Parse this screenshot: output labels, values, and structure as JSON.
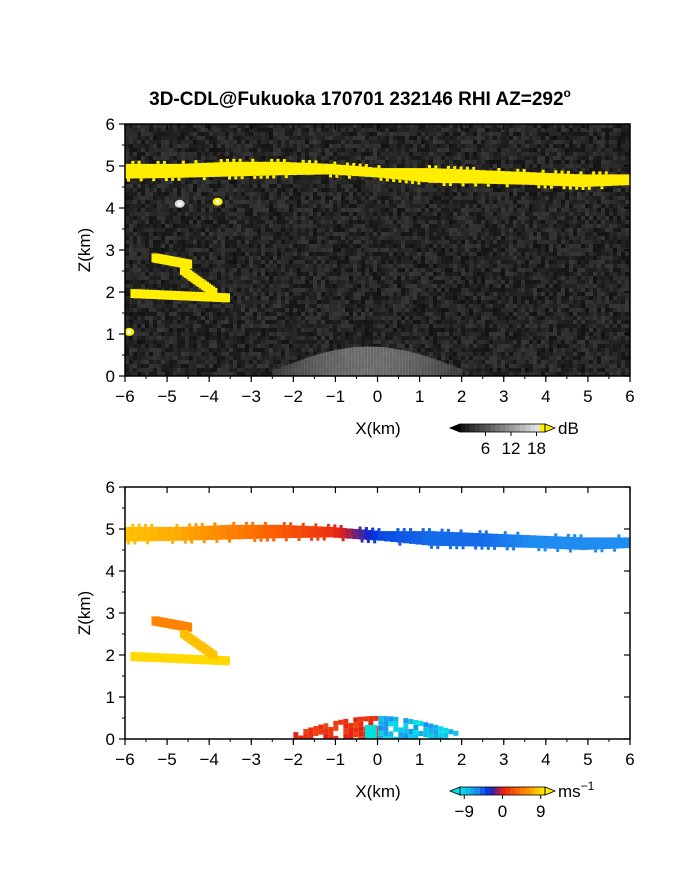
{
  "title": "3D-CDL@Fukuoka 170701 232146 RHI AZ=292",
  "title_sup": "o",
  "chart_data": [
    {
      "type": "heatmap",
      "name": "backscatter",
      "xlabel": "X(km)",
      "ylabel": "Z(km)",
      "xlim": [
        -6,
        6
      ],
      "ylim": [
        0,
        6
      ],
      "x_ticks": [
        -6,
        -5,
        -4,
        -3,
        -2,
        -1,
        0,
        1,
        2,
        3,
        4,
        5,
        6
      ],
      "y_ticks": [
        0,
        1,
        2,
        3,
        4,
        5,
        6
      ],
      "colorbar": {
        "unit": "dB",
        "ticks": [
          "6",
          "12",
          "18"
        ],
        "range": [
          0,
          20
        ]
      },
      "features": [
        {
          "kind": "cloud-layer",
          "x": [
            -6,
            6
          ],
          "z_top": [
            5.05,
            5.05,
            5.1,
            5.1,
            5.05,
            4.95,
            4.95,
            4.9,
            4.85,
            4.8,
            4.8
          ],
          "z_bottom": [
            4.7,
            4.72,
            4.75,
            4.78,
            4.8,
            4.72,
            4.6,
            4.58,
            4.55,
            4.5,
            4.55
          ],
          "value_db": 18
        },
        {
          "kind": "upper-streak",
          "x": [
            -5.3,
            -4.5
          ],
          "z": [
            2.8,
            2.65
          ],
          "value_db": 18
        },
        {
          "kind": "lower-streak",
          "x": [
            -5.8,
            -3.6
          ],
          "z": [
            1.95,
            1.85
          ],
          "value_db": 18
        },
        {
          "kind": "hook",
          "x": [
            -4.6,
            -3.9
          ],
          "z": [
            2.5,
            2.0
          ],
          "value_db": 18
        },
        {
          "kind": "blob",
          "x": -3.8,
          "z": 4.15,
          "value_db": 18
        },
        {
          "kind": "blob",
          "x": -4.7,
          "z": 4.1,
          "value_db": 10
        },
        {
          "kind": "blob",
          "x": -5.9,
          "z": 1.05,
          "value_db": 18
        },
        {
          "kind": "boundary-layer",
          "x": [
            -2.5,
            2.0
          ],
          "z_top": 0.7,
          "value_db": 9
        }
      ],
      "background_db": 4
    },
    {
      "type": "heatmap",
      "name": "doppler-velocity",
      "xlabel": "X(km)",
      "ylabel": "Z(km)",
      "xlim": [
        -6,
        6
      ],
      "ylim": [
        0,
        6
      ],
      "x_ticks": [
        -6,
        -5,
        -4,
        -3,
        -2,
        -1,
        0,
        1,
        2,
        3,
        4,
        5,
        6
      ],
      "y_ticks": [
        0,
        1,
        2,
        3,
        4,
        5,
        6
      ],
      "colorbar": {
        "unit": "ms",
        "unit_sup": "−1",
        "ticks": [
          "−9",
          "0",
          "9"
        ],
        "range": [
          -10,
          10
        ]
      },
      "features": [
        {
          "kind": "cloud-layer",
          "x": [
            -6,
            6
          ],
          "velocity_ms": [
            8,
            7,
            5,
            3,
            1,
            -4,
            -5,
            -5,
            -6,
            -6,
            -6
          ]
        },
        {
          "kind": "upper-streak",
          "x": [
            -5.3,
            -4.5
          ],
          "z": [
            2.8,
            2.65
          ],
          "velocity_ms": 5
        },
        {
          "kind": "lower-streak",
          "x": [
            -5.8,
            -3.6
          ],
          "z": [
            1.95,
            1.85
          ],
          "velocity_ms": 9
        },
        {
          "kind": "hook",
          "x": [
            -4.6,
            -3.9
          ],
          "z": [
            2.5,
            2.0
          ],
          "velocity_ms": 8
        },
        {
          "kind": "boundary-layer",
          "x": [
            -2.0,
            1.9
          ],
          "z_top": 0.55,
          "velocity_ms_left": 1,
          "velocity_ms_right": -8
        }
      ]
    }
  ]
}
